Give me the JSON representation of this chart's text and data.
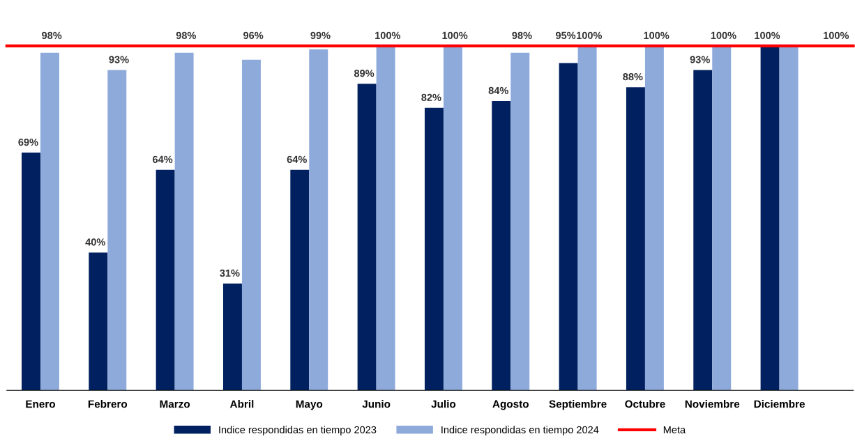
{
  "chart_data": {
    "type": "bar",
    "categories": [
      "Enero",
      "Febrero",
      "Marzo",
      "Abril",
      "Mayo",
      "Junio",
      "Julio",
      "Agosto",
      "Septiembre",
      "Octubre",
      "Noviembre",
      "Diciembre"
    ],
    "series": [
      {
        "name": "Indice respondidas en tiempo 2023",
        "color": "#002060",
        "values": [
          69,
          40,
          64,
          31,
          64,
          89,
          82,
          84,
          95,
          88,
          93,
          100
        ],
        "value_labels": [
          "69%",
          "40%",
          "64%",
          "31%",
          "64%",
          "89%",
          "82%",
          "84%",
          "95%",
          "88%",
          "93%",
          "100%"
        ]
      },
      {
        "name": "Indice respondidas en tiempo 2024",
        "color": "#8eaadb",
        "values": [
          98,
          93,
          98,
          96,
          99,
          100,
          100,
          98,
          100,
          100,
          100,
          100
        ],
        "value_labels": [
          "98%",
          "93%",
          "98%",
          "96%",
          "99%",
          "100%",
          "100%",
          "98%",
          "100%",
          "100%",
          "100%",
          null
        ]
      }
    ],
    "ref_lines": [
      {
        "axis": "y",
        "value": 100,
        "label": "Meta",
        "color": "#ff0000"
      }
    ],
    "annotations": [
      "100%"
    ],
    "tick_labels": "x",
    "legend": "bottom"
  }
}
